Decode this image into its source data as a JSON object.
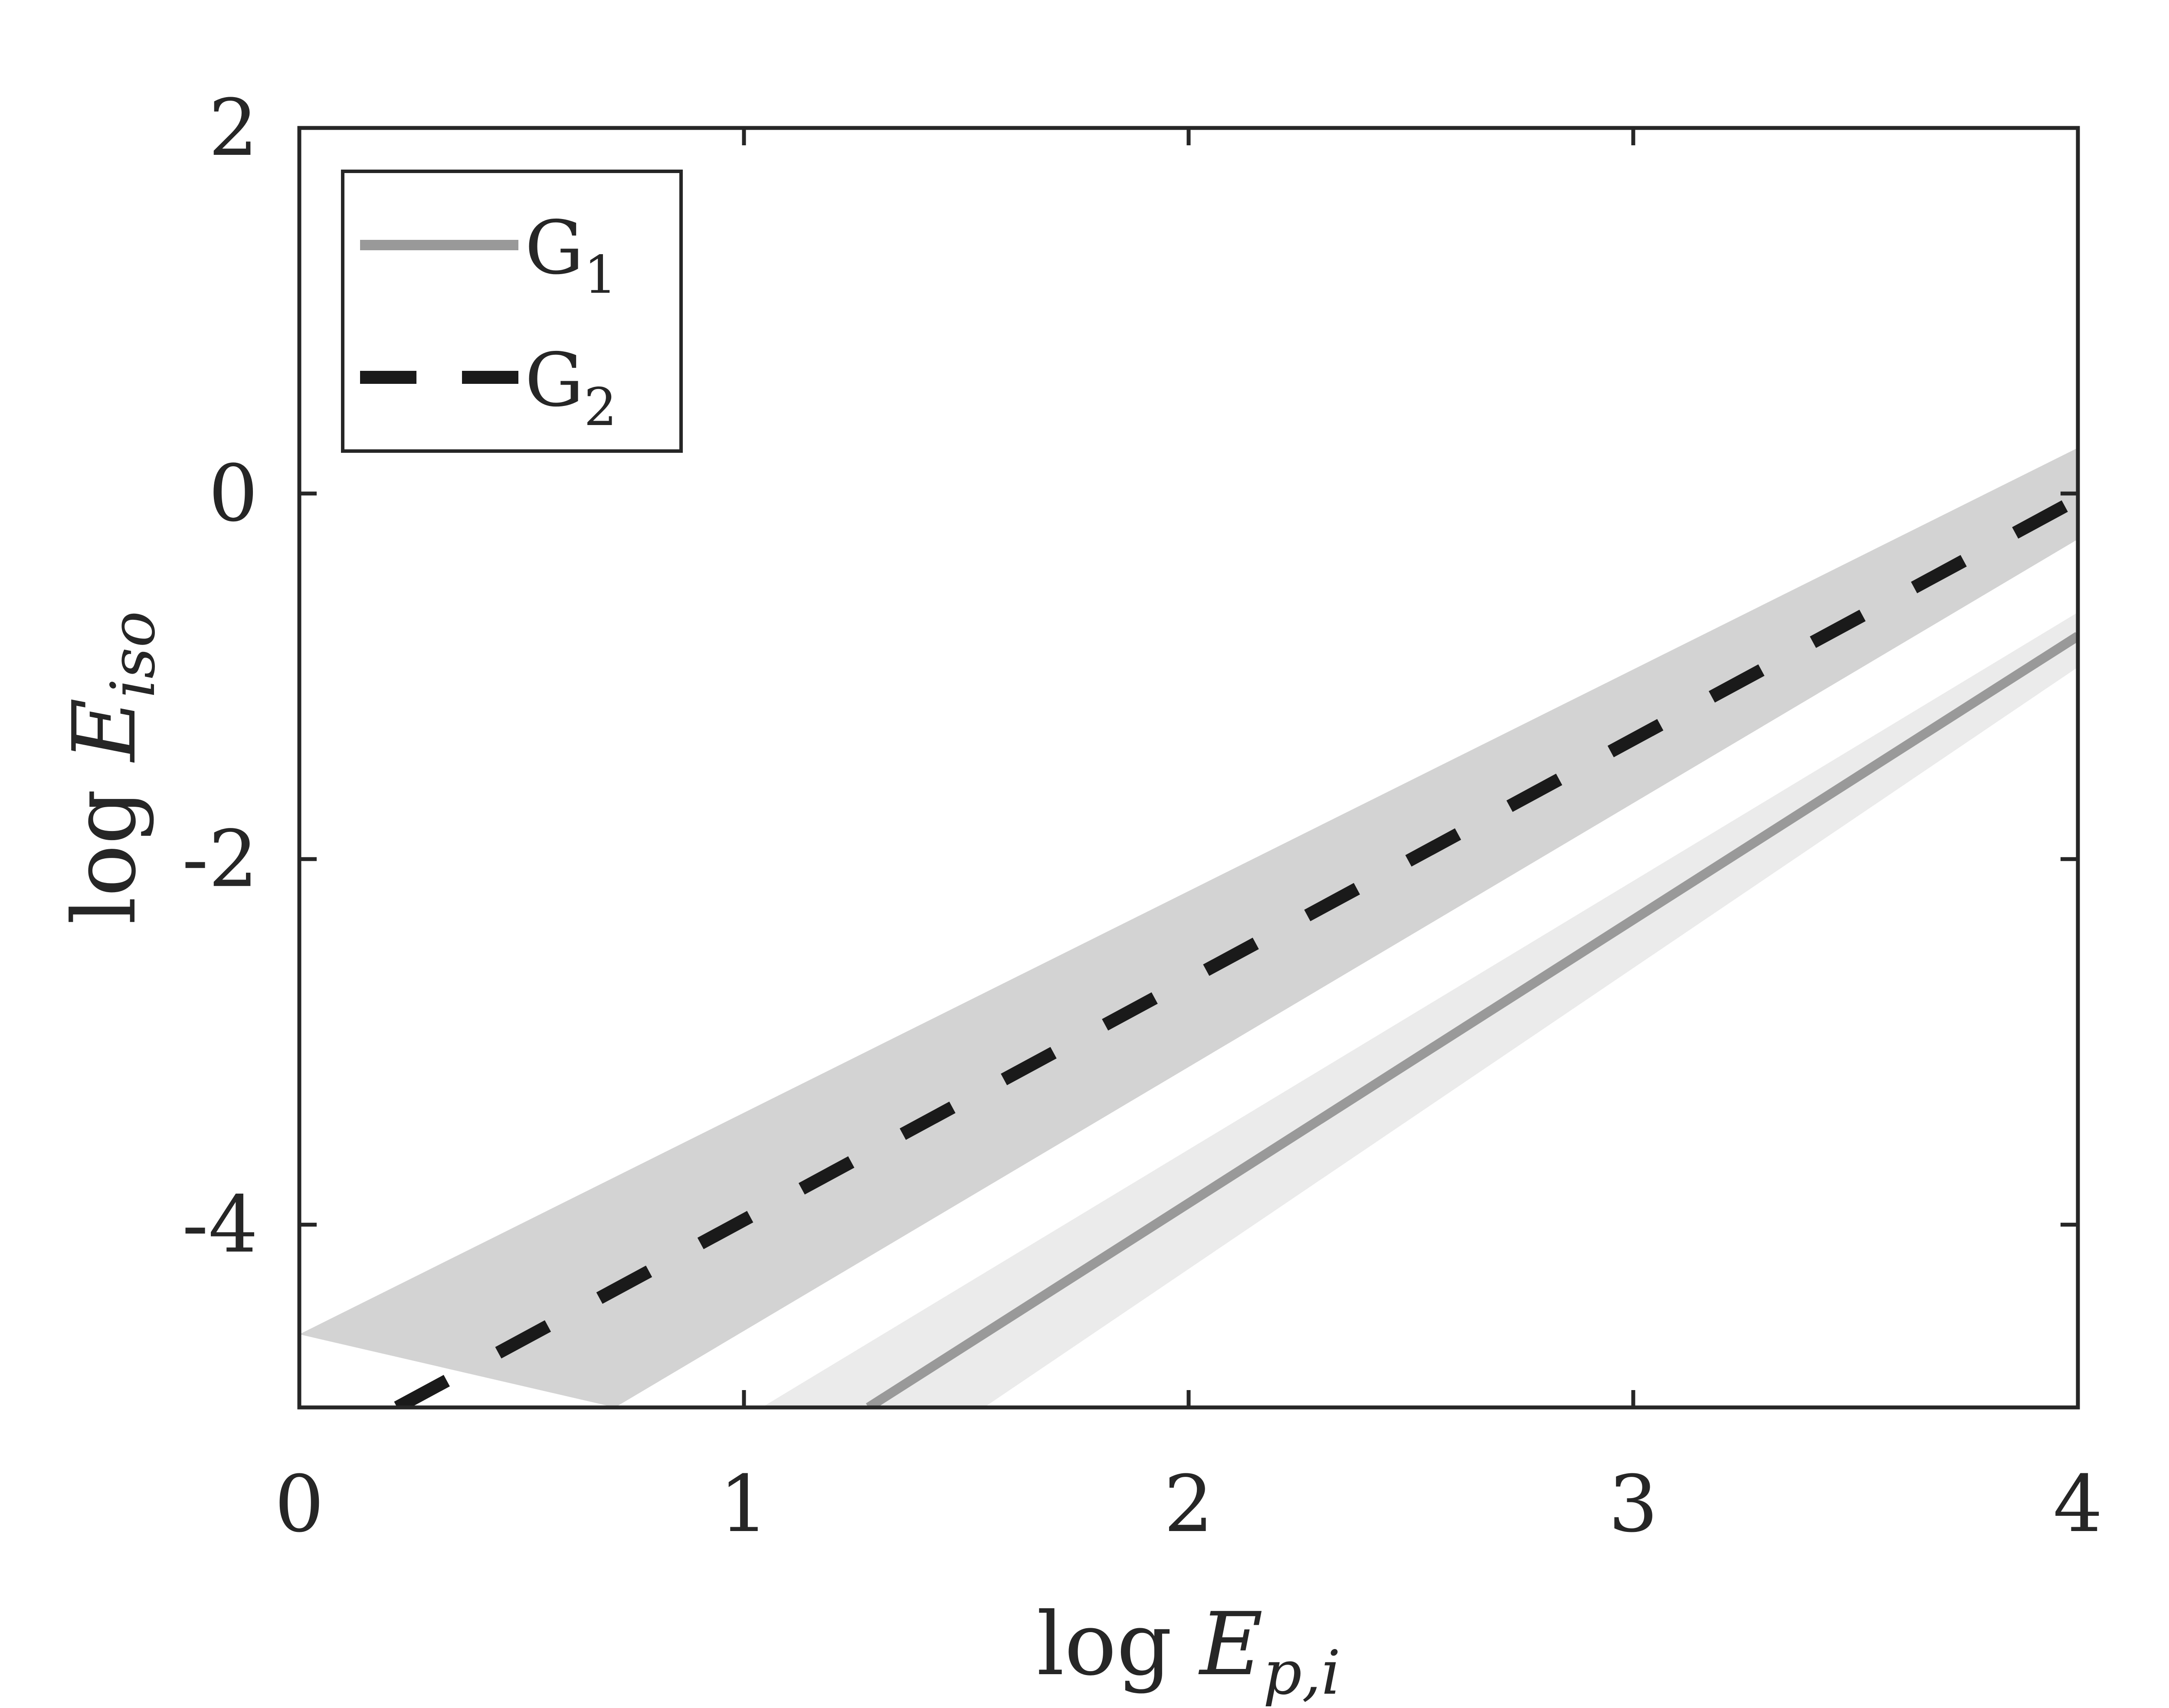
{
  "chart_data": {
    "type": "line",
    "xlabel": {
      "prefix": "log",
      "symbol": "E",
      "sub": "p,i"
    },
    "ylabel": {
      "prefix": "log",
      "symbol": "E",
      "sub": "iso"
    },
    "xlim": [
      0,
      4
    ],
    "ylim": [
      -5,
      2
    ],
    "xticks": [
      0,
      1,
      2,
      3,
      4
    ],
    "xtick_labels": [
      "0",
      "1",
      "2",
      "3",
      "4"
    ],
    "yticks": [
      -4,
      -2,
      0,
      2
    ],
    "ytick_labels": [
      "-4",
      "-2",
      "0",
      "2"
    ],
    "grid": false,
    "legend_position": "top-left",
    "series": [
      {
        "name": "G1",
        "legend": {
          "base": "G",
          "sub": "1"
        },
        "style": "solid",
        "color": "#999999",
        "band_color": "#ebebeb",
        "line": {
          "x": [
            1.28,
            4.0
          ],
          "y": [
            -5.0,
            -0.78
          ]
        },
        "band": {
          "x": [
            1.04,
            4.0,
            4.0,
            1.54
          ],
          "y": [
            -5.0,
            -0.65,
            -0.95,
            -5.0
          ]
        }
      },
      {
        "name": "G2",
        "legend": {
          "base": "G",
          "sub": "2"
        },
        "style": "dashed",
        "color": "#1a1a1a",
        "band_color": "#d3d3d3",
        "line": {
          "x": [
            0.22,
            4.0
          ],
          "y": [
            -5.0,
            -0.03
          ]
        },
        "band": {
          "x": [
            0.0,
            4.0,
            4.0,
            0.71
          ],
          "y": [
            -4.6,
            0.25,
            -0.25,
            -5.0
          ]
        }
      }
    ]
  }
}
